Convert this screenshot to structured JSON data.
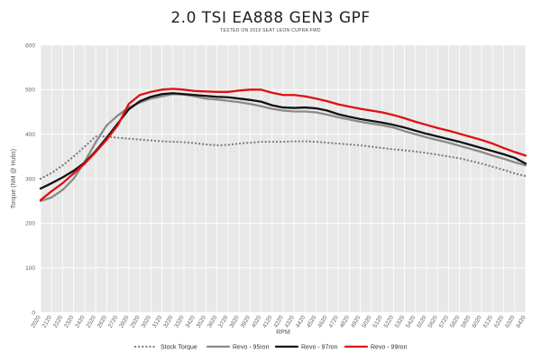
{
  "chart_data": {
    "type": "line",
    "title": "2.0 TSI EA888 GEN3 GPF",
    "subtitle": "TESTED ON 2019 SEAT LEON CUPRA FWD",
    "xlabel": "RPM",
    "ylabel": "Torque (NM @ Hubs)",
    "ylim": [
      0,
      600
    ],
    "yticks": [
      0,
      100,
      200,
      300,
      400,
      500,
      600
    ],
    "grid": true,
    "legend_position": "bottom",
    "plot_background": "#e8e8e8",
    "x": [
      2020,
      2120,
      2220,
      2320,
      2420,
      2520,
      2620,
      2720,
      2820,
      2920,
      3020,
      3120,
      3220,
      3320,
      3420,
      3520,
      3620,
      3720,
      3820,
      3920,
      4020,
      4120,
      4220,
      4320,
      4420,
      4520,
      4620,
      4720,
      4820,
      4920,
      5020,
      5120,
      5220,
      5320,
      5420,
      5520,
      5620,
      5720,
      5820,
      5920,
      6020,
      6120,
      6220,
      6320,
      6420
    ],
    "x_tick_labels": [
      "2020",
      "2120",
      "2220",
      "2320",
      "2420",
      "2520",
      "2620",
      "2720",
      "2820",
      "2920",
      "3020",
      "3120",
      "3220",
      "3320",
      "3420",
      "3520",
      "3620",
      "3720",
      "3820",
      "3920",
      "4020",
      "4120",
      "4220",
      "4320",
      "4420",
      "4520",
      "4620",
      "4720",
      "4820",
      "4920",
      "5020",
      "5120",
      "5220",
      "5320",
      "5420",
      "5520",
      "5620",
      "5720",
      "5820",
      "5920",
      "6020",
      "6120",
      "6220",
      "6320",
      "6420"
    ],
    "series": [
      {
        "name": "Stock Torque",
        "color": "#7a7a7a",
        "style": "dotted",
        "values": [
          300,
          313,
          330,
          350,
          372,
          395,
          395,
          392,
          390,
          388,
          386,
          384,
          383,
          382,
          380,
          377,
          375,
          376,
          379,
          381,
          383,
          383,
          383,
          384,
          384,
          383,
          381,
          379,
          377,
          375,
          372,
          369,
          366,
          364,
          361,
          358,
          354,
          350,
          346,
          340,
          334,
          327,
          320,
          312,
          306
        ]
      },
      {
        "name": "Revo - 95ron",
        "color": "#8a8a8a",
        "style": "solid",
        "values": [
          250,
          258,
          275,
          300,
          338,
          382,
          420,
          442,
          460,
          471,
          480,
          485,
          490,
          489,
          485,
          480,
          478,
          475,
          472,
          468,
          463,
          457,
          453,
          451,
          451,
          449,
          444,
          438,
          433,
          428,
          424,
          420,
          415,
          407,
          400,
          393,
          387,
          381,
          374,
          367,
          360,
          352,
          345,
          337,
          330
        ]
      },
      {
        "name": "Revo - 97ron",
        "color": "#111111",
        "style": "solid",
        "values": [
          278,
          290,
          303,
          318,
          336,
          362,
          392,
          424,
          456,
          474,
          484,
          490,
          492,
          490,
          488,
          486,
          484,
          483,
          480,
          477,
          473,
          465,
          460,
          459,
          460,
          458,
          453,
          445,
          439,
          434,
          430,
          426,
          421,
          415,
          408,
          401,
          395,
          389,
          383,
          376,
          369,
          362,
          355,
          347,
          334
        ]
      },
      {
        "name": "Revo - 99ron",
        "color": "#e01010",
        "style": "solid",
        "values": [
          252,
          272,
          290,
          312,
          334,
          360,
          388,
          420,
          468,
          488,
          495,
          500,
          502,
          500,
          497,
          496,
          495,
          495,
          498,
          500,
          500,
          493,
          488,
          488,
          485,
          480,
          474,
          467,
          462,
          457,
          453,
          449,
          443,
          436,
          428,
          421,
          414,
          408,
          401,
          394,
          387,
          379,
          369,
          360,
          352
        ]
      }
    ]
  }
}
